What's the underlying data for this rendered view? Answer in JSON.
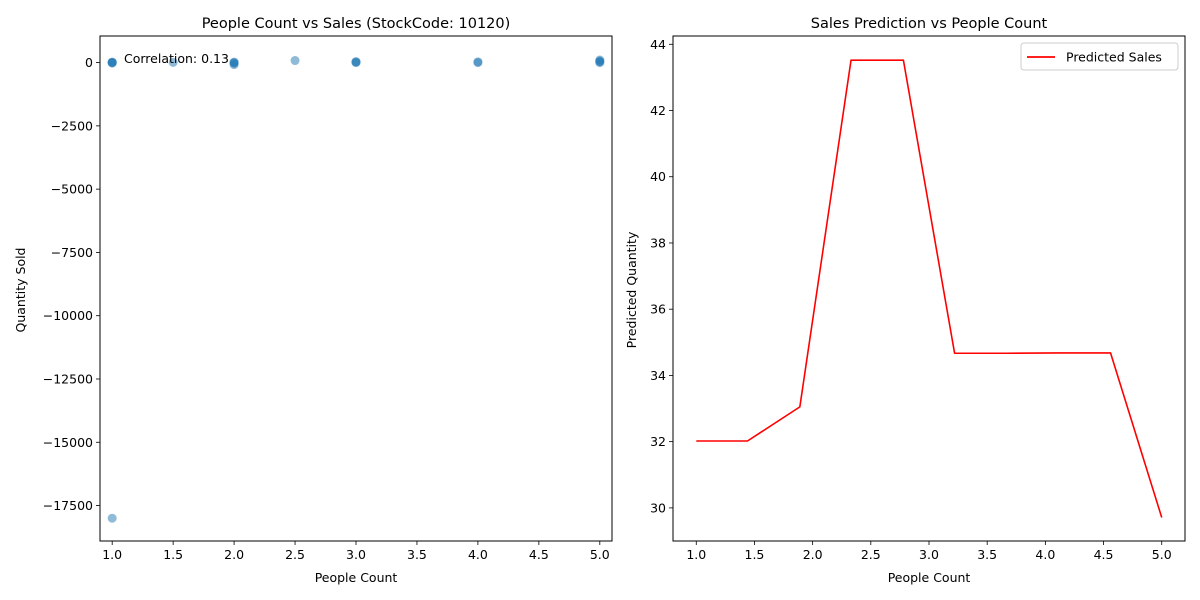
{
  "chart_data": [
    {
      "type": "scatter",
      "title": "People Count vs Sales (StockCode: 10120)",
      "xlabel": "People Count",
      "ylabel": "Quantity Sold",
      "xlim": [
        0.9,
        5.1
      ],
      "ylim": [
        -18900,
        1050
      ],
      "xticks": [
        1.0,
        1.5,
        2.0,
        2.5,
        3.0,
        3.5,
        4.0,
        4.5,
        5.0
      ],
      "xtick_labels": [
        "1.0",
        "1.5",
        "2.0",
        "2.5",
        "3.0",
        "3.5",
        "4.0",
        "4.5",
        "5.0"
      ],
      "yticks": [
        0,
        -2500,
        -5000,
        -7500,
        -10000,
        -12500,
        -15000,
        -17500
      ],
      "ytick_labels": [
        "0",
        "−2500",
        "−5000",
        "−7500",
        "−10000",
        "−12500",
        "−15000",
        "−17500"
      ],
      "annotation": "Correlation: 0.13",
      "grid": false,
      "color": "#1f77b4",
      "points": [
        {
          "x": 1.0,
          "y": 0
        },
        {
          "x": 1.0,
          "y": 10
        },
        {
          "x": 1.0,
          "y": 20
        },
        {
          "x": 1.0,
          "y": -20
        },
        {
          "x": 1.0,
          "y": -18000
        },
        {
          "x": 1.5,
          "y": 10
        },
        {
          "x": 2.0,
          "y": 0
        },
        {
          "x": 2.0,
          "y": 20
        },
        {
          "x": 2.0,
          "y": -30
        },
        {
          "x": 2.0,
          "y": -80
        },
        {
          "x": 2.5,
          "y": 80
        },
        {
          "x": 3.0,
          "y": 0
        },
        {
          "x": 3.0,
          "y": 20
        },
        {
          "x": 3.0,
          "y": 40
        },
        {
          "x": 4.0,
          "y": 0
        },
        {
          "x": 4.0,
          "y": 30
        },
        {
          "x": 5.0,
          "y": 0
        },
        {
          "x": 5.0,
          "y": 30
        },
        {
          "x": 5.0,
          "y": 60
        },
        {
          "x": 5.0,
          "y": 100
        }
      ]
    },
    {
      "type": "line",
      "title": "Sales Prediction vs People Count",
      "xlabel": "People Count",
      "ylabel": "Predicted Quantity",
      "xlim": [
        0.8,
        5.2
      ],
      "ylim": [
        29.0,
        44.25
      ],
      "xticks": [
        1.0,
        1.5,
        2.0,
        2.5,
        3.0,
        3.5,
        4.0,
        4.5,
        5.0
      ],
      "xtick_labels": [
        "1.0",
        "1.5",
        "2.0",
        "2.5",
        "3.0",
        "3.5",
        "4.0",
        "4.5",
        "5.0"
      ],
      "yticks": [
        30,
        32,
        34,
        36,
        38,
        40,
        42,
        44
      ],
      "ytick_labels": [
        "30",
        "32",
        "34",
        "36",
        "38",
        "40",
        "42",
        "44"
      ],
      "legend": "top-right",
      "grid": false,
      "series": [
        {
          "name": "Predicted Sales",
          "color": "#ff0000",
          "x": [
            1.0,
            1.44,
            1.89,
            2.33,
            2.78,
            3.22,
            3.67,
            4.11,
            4.56,
            5.0
          ],
          "y": [
            32.02,
            32.02,
            33.05,
            43.52,
            43.52,
            34.67,
            34.67,
            34.68,
            34.68,
            29.71
          ]
        }
      ]
    }
  ]
}
